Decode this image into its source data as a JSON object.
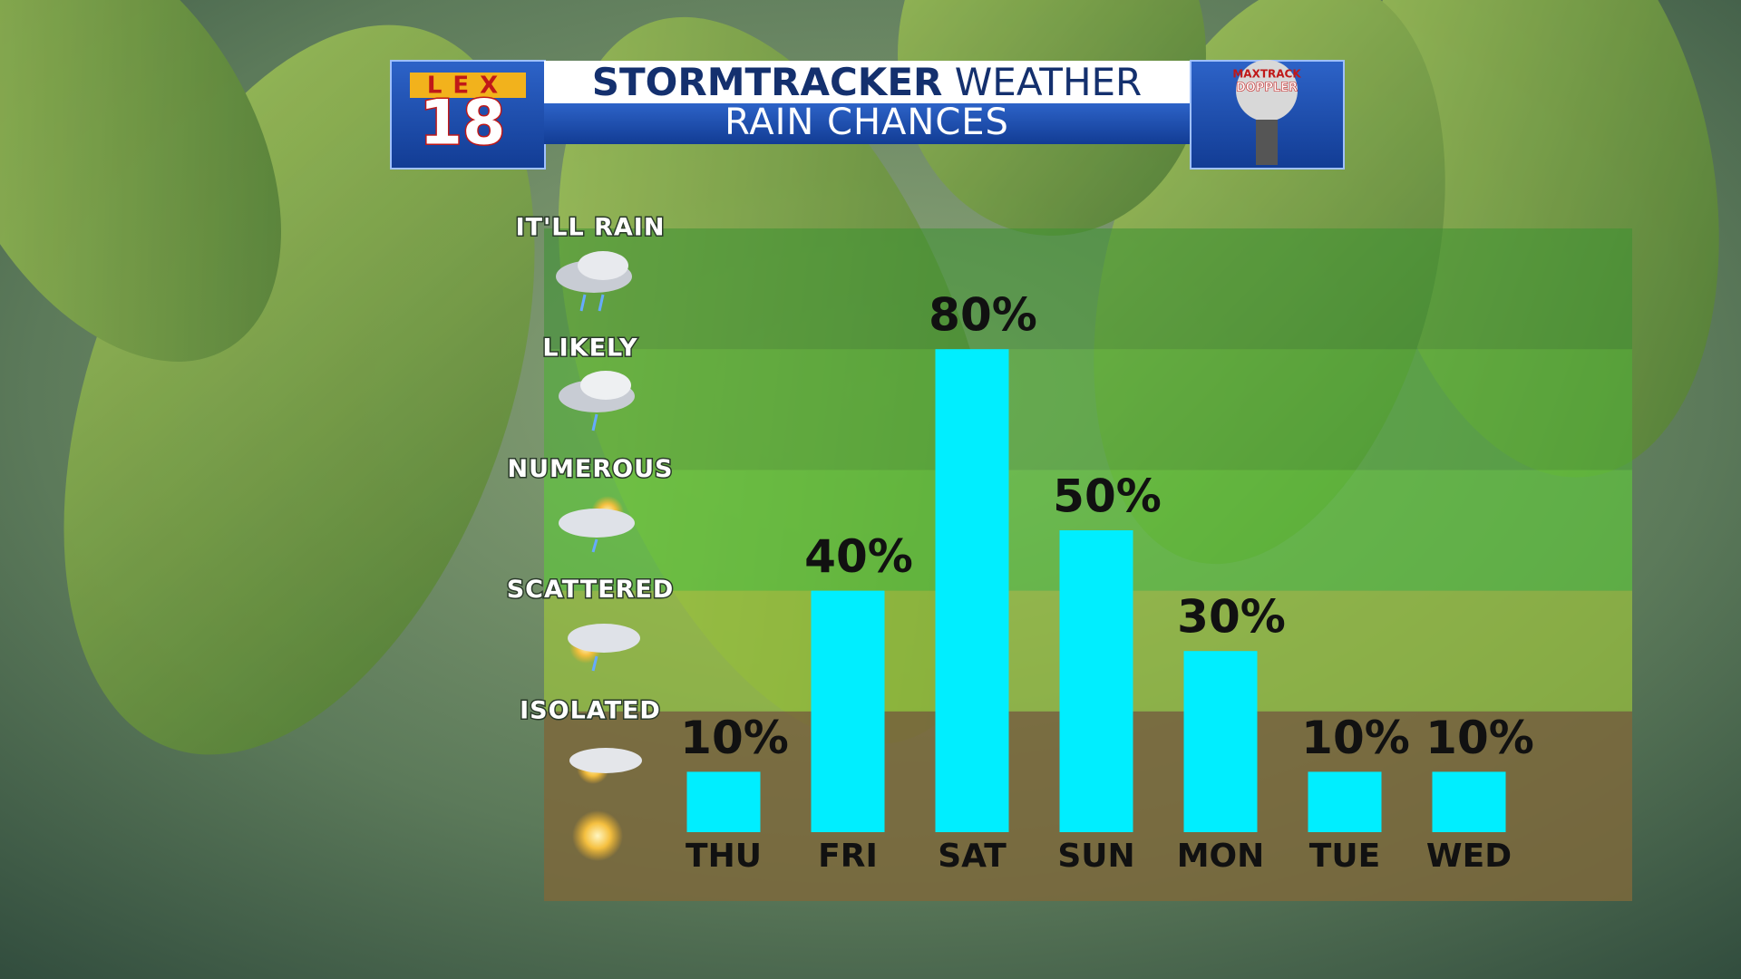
{
  "header": {
    "title_bold": "STORMTRACKER",
    "title_light": "WEATHER",
    "subtitle": "RAIN CHANCES",
    "station_logo": {
      "letters": "LEX",
      "number": "18"
    },
    "radar_logo": {
      "line1": "MAXTRACK",
      "line2": "DOPPLER"
    }
  },
  "chart_data": {
    "type": "bar",
    "categories": [
      "THU",
      "FRI",
      "SAT",
      "SUN",
      "MON",
      "TUE",
      "WED"
    ],
    "values": [
      10,
      40,
      80,
      50,
      30,
      10,
      10
    ],
    "value_labels": [
      "10%",
      "40%",
      "80%",
      "50%",
      "30%",
      "10%",
      "10%"
    ],
    "color": "#00eeff",
    "ylim": [
      0,
      100
    ],
    "bands": [
      {
        "label": "ISOLATED",
        "from": 0,
        "to": 20,
        "color": "rgba(125,105,60,0.85)"
      },
      {
        "label": "SCATTERED",
        "from": 20,
        "to": 40,
        "color": "rgba(160,200,60,0.65)"
      },
      {
        "label": "NUMEROUS",
        "from": 40,
        "to": 60,
        "color": "rgba(95,200,60,0.65)"
      },
      {
        "label": "LIKELY",
        "from": 60,
        "to": 80,
        "color": "rgba(80,175,55,0.6)"
      },
      {
        "label": "IT'LL RAIN",
        "from": 80,
        "to": 100,
        "color": "rgba(60,145,50,0.55)"
      }
    ]
  }
}
